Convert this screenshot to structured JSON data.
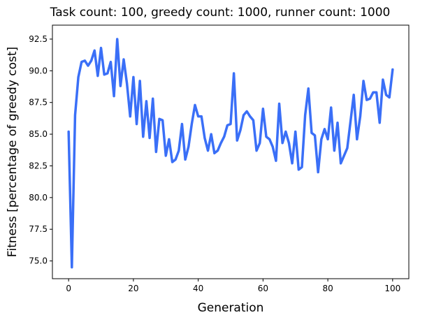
{
  "chart_data": {
    "type": "line",
    "title": "Task count: 100, greedy count: 1000, runner count: 1000",
    "xlabel": "Generation",
    "ylabel": "Fitness [percentage of greedy cost]",
    "xlim": [
      -5,
      105
    ],
    "ylim": [
      73.6,
      93.6
    ],
    "xticks": [
      0,
      20,
      40,
      60,
      80,
      100
    ],
    "yticks": [
      75.0,
      77.5,
      80.0,
      82.5,
      85.0,
      87.5,
      90.0,
      92.5
    ],
    "xtick_labels": [
      "0",
      "20",
      "40",
      "60",
      "80",
      "100"
    ],
    "ytick_labels": [
      "75.0",
      "77.5",
      "80.0",
      "82.5",
      "85.0",
      "87.5",
      "90.0",
      "92.5"
    ],
    "grid": false,
    "line_color": "#3a6ff7",
    "x": [
      0,
      1,
      2,
      3,
      4,
      5,
      6,
      7,
      8,
      9,
      10,
      11,
      12,
      13,
      14,
      15,
      16,
      17,
      18,
      19,
      20,
      21,
      22,
      23,
      24,
      25,
      26,
      27,
      28,
      29,
      30,
      31,
      32,
      33,
      34,
      35,
      36,
      37,
      38,
      39,
      40,
      41,
      42,
      43,
      44,
      45,
      46,
      47,
      48,
      49,
      50,
      51,
      52,
      53,
      54,
      55,
      56,
      57,
      58,
      59,
      60,
      61,
      62,
      63,
      64,
      65,
      66,
      67,
      68,
      69,
      70,
      71,
      72,
      73,
      74,
      75,
      76,
      77,
      78,
      79,
      80,
      81,
      82,
      83,
      84,
      85,
      86,
      87,
      88,
      89,
      90,
      91,
      92,
      93,
      94,
      95,
      96,
      97,
      98,
      99,
      100
    ],
    "y": [
      85.2,
      74.5,
      86.5,
      89.5,
      90.7,
      90.8,
      90.4,
      90.8,
      91.6,
      89.6,
      91.8,
      89.7,
      89.8,
      90.7,
      88.0,
      92.5,
      88.8,
      90.9,
      89.0,
      86.4,
      89.5,
      85.8,
      89.2,
      84.8,
      87.6,
      84.7,
      87.8,
      83.6,
      86.2,
      86.1,
      83.3,
      84.6,
      82.8,
      83.0,
      83.7,
      85.8,
      83.0,
      84.0,
      85.8,
      87.3,
      86.4,
      86.4,
      84.7,
      83.7,
      85.0,
      83.5,
      83.7,
      84.3,
      84.8,
      85.7,
      85.8,
      89.8,
      84.5,
      85.3,
      86.5,
      86.8,
      86.4,
      86.1,
      83.7,
      84.3,
      87.0,
      84.8,
      84.6,
      84.0,
      82.9,
      87.4,
      84.3,
      85.2,
      84.3,
      82.7,
      85.2,
      82.2,
      82.4,
      86.5,
      88.6,
      85.1,
      84.9,
      82.0,
      84.6,
      85.4,
      84.6,
      87.1,
      83.7,
      85.9,
      82.7,
      83.3,
      83.9,
      86.0,
      88.1,
      84.6,
      86.4,
      89.2,
      87.7,
      87.8,
      88.3,
      88.3,
      85.9,
      89.3,
      88.1,
      87.9,
      90.1
    ]
  }
}
